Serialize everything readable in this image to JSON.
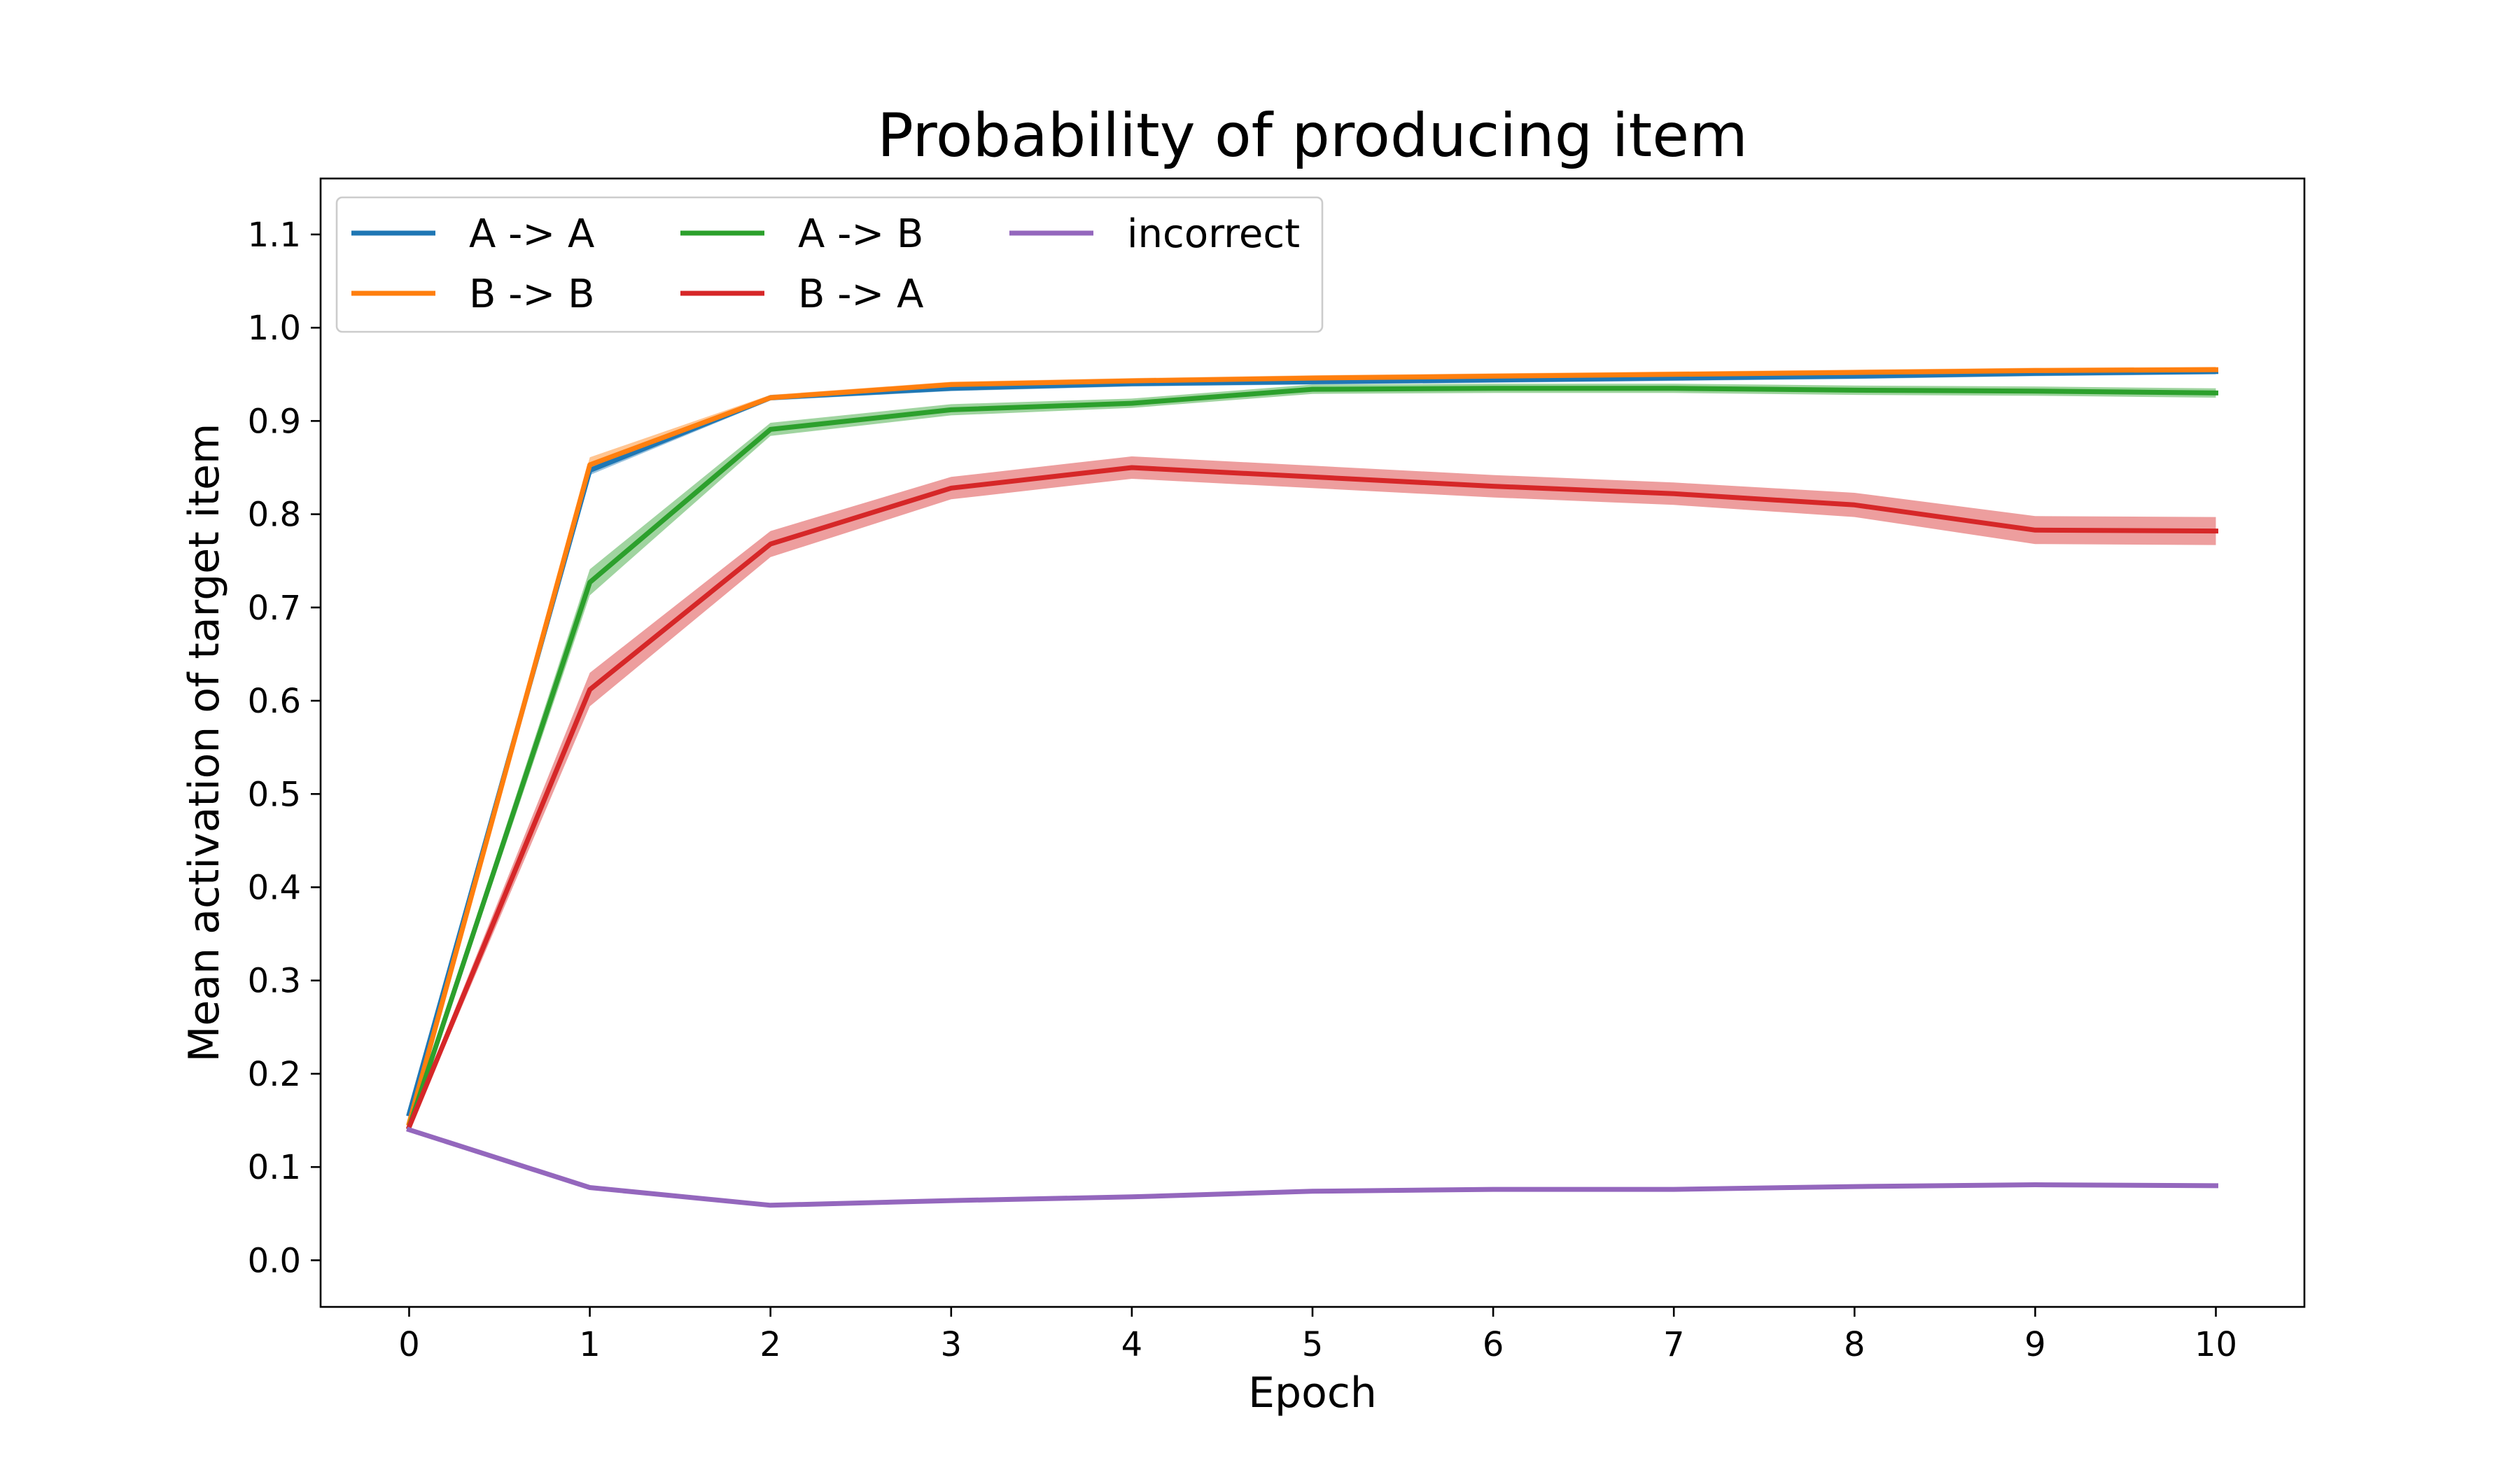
{
  "chart_data": {
    "type": "line",
    "title": "Probability of producing item",
    "xlabel": "Epoch",
    "ylabel": "Mean activation of target item",
    "xlim": [
      -0.49,
      10.49
    ],
    "ylim": [
      -0.05,
      1.16
    ],
    "xticks": [
      0,
      1,
      2,
      3,
      4,
      5,
      6,
      7,
      8,
      9,
      10
    ],
    "yticks": [
      0.0,
      0.1,
      0.2,
      0.3,
      0.4,
      0.5,
      0.6,
      0.7,
      0.8,
      0.9,
      1.0,
      1.1
    ],
    "grid": false,
    "legend_position": "top-left",
    "legend_columns": 3,
    "x": [
      0,
      1,
      2,
      3,
      4,
      5,
      6,
      7,
      8,
      9,
      10
    ],
    "series": [
      {
        "name": "A -> A",
        "color": "#1f77b4",
        "values": [
          0.157,
          0.847,
          0.925,
          0.935,
          0.94,
          0.942,
          0.944,
          0.946,
          0.948,
          0.951,
          0.953
        ],
        "band": [
          0.003,
          0.005,
          0.003,
          0.003,
          0.003,
          0.003,
          0.003,
          0.003,
          0.003,
          0.003,
          0.003
        ]
      },
      {
        "name": "B -> B",
        "color": "#ff7f0e",
        "values": [
          0.147,
          0.853,
          0.925,
          0.939,
          0.943,
          0.946,
          0.948,
          0.95,
          0.952,
          0.954,
          0.955
        ],
        "band": [
          0.003,
          0.008,
          0.003,
          0.003,
          0.003,
          0.003,
          0.003,
          0.003,
          0.003,
          0.003,
          0.003
        ]
      },
      {
        "name": "A -> B",
        "color": "#2ca02c",
        "values": [
          0.143,
          0.727,
          0.891,
          0.912,
          0.919,
          0.934,
          0.935,
          0.935,
          0.933,
          0.932,
          0.93
        ],
        "band": [
          0.004,
          0.014,
          0.007,
          0.006,
          0.005,
          0.005,
          0.005,
          0.005,
          0.005,
          0.005,
          0.005
        ]
      },
      {
        "name": "B -> A",
        "color": "#d62728",
        "values": [
          0.143,
          0.612,
          0.768,
          0.828,
          0.85,
          0.84,
          0.83,
          0.822,
          0.81,
          0.783,
          0.782
        ],
        "band": [
          0.004,
          0.018,
          0.014,
          0.012,
          0.012,
          0.012,
          0.012,
          0.012,
          0.013,
          0.015,
          0.015
        ]
      },
      {
        "name": "incorrect",
        "color": "#9467bd",
        "values": [
          0.14,
          0.078,
          0.059,
          0.064,
          0.068,
          0.074,
          0.076,
          0.076,
          0.079,
          0.081,
          0.08
        ],
        "band": [
          0.001,
          0.001,
          0.001,
          0.001,
          0.001,
          0.001,
          0.001,
          0.001,
          0.001,
          0.001,
          0.001
        ]
      }
    ]
  }
}
